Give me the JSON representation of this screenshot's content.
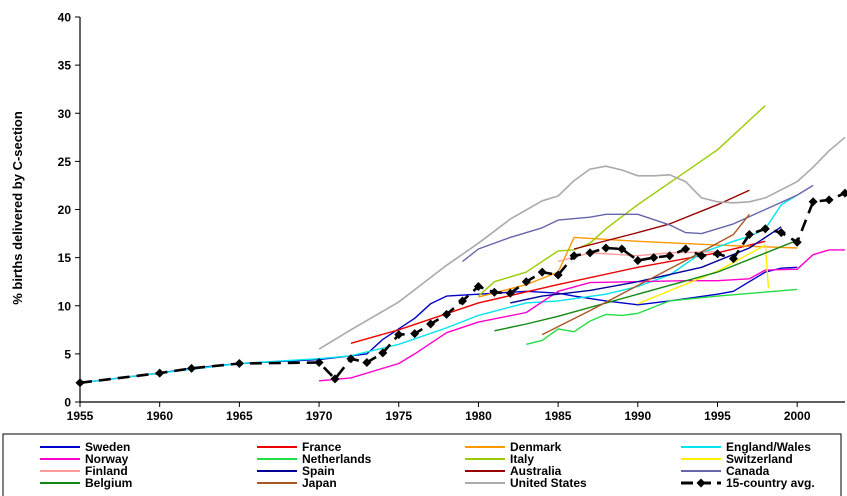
{
  "chart_data": {
    "type": "line",
    "title": "",
    "xlabel": "",
    "ylabel": "% births delivered by C-section",
    "xlim": [
      1955,
      2003
    ],
    "ylim": [
      0,
      40
    ],
    "x_ticks": [
      1955,
      1960,
      1965,
      1970,
      1975,
      1980,
      1985,
      1990,
      1995,
      2000
    ],
    "y_ticks": [
      0,
      5,
      10,
      15,
      20,
      25,
      30,
      35,
      40
    ],
    "grid": false,
    "legend_position": "bottom",
    "series": [
      {
        "name": "Sweden",
        "color": "#0000cc",
        "width": 1.4,
        "dash": "",
        "points": [
          [
            1955,
            2
          ],
          [
            1957,
            2.4
          ],
          [
            1960,
            3
          ],
          [
            1962,
            3.5
          ],
          [
            1965,
            4
          ],
          [
            1970,
            4.4
          ],
          [
            1973,
            5
          ],
          [
            1974,
            6.5
          ],
          [
            1976,
            8.7
          ],
          [
            1977,
            10.2
          ],
          [
            1978,
            11
          ],
          [
            1980,
            11.2
          ],
          [
            1983,
            11.5
          ],
          [
            1985,
            11.3
          ],
          [
            1986,
            11
          ],
          [
            1988,
            10.5
          ],
          [
            1990,
            10.1
          ],
          [
            1992,
            10.5
          ],
          [
            1995,
            11.2
          ],
          [
            1996,
            11.5
          ],
          [
            1998,
            13.5
          ],
          [
            1999,
            13.9
          ],
          [
            2000,
            14
          ]
        ]
      },
      {
        "name": "France",
        "color": "#ee0000",
        "width": 1.4,
        "dash": "",
        "points": [
          [
            1972,
            6.1
          ],
          [
            1975,
            7.5
          ],
          [
            1980,
            10.3
          ],
          [
            1985,
            12.2
          ],
          [
            1990,
            14
          ],
          [
            1995,
            15.5
          ],
          [
            1998,
            16.7
          ]
        ]
      },
      {
        "name": "Denmark",
        "color": "#ff9900",
        "width": 1.4,
        "dash": "",
        "points": [
          [
            1980,
            10.9
          ],
          [
            1983,
            12.2
          ],
          [
            1985,
            13.5
          ],
          [
            1986,
            17.1
          ],
          [
            1990,
            16.7
          ],
          [
            1995,
            16.3
          ],
          [
            2000,
            16
          ]
        ]
      },
      {
        "name": "England/Wales",
        "color": "#00e5ee",
        "width": 1.4,
        "dash": "",
        "points": [
          [
            1955,
            2
          ],
          [
            1960,
            3
          ],
          [
            1965,
            4
          ],
          [
            1970,
            4.5
          ],
          [
            1972,
            4.8
          ],
          [
            1975,
            6
          ],
          [
            1978,
            7.7
          ],
          [
            1980,
            9
          ],
          [
            1983,
            10.3
          ],
          [
            1985,
            10.5
          ],
          [
            1988,
            11.2
          ],
          [
            1990,
            12
          ],
          [
            1992,
            13.2
          ],
          [
            1994,
            15.5
          ],
          [
            1996,
            16.7
          ],
          [
            1997,
            17.2
          ],
          [
            1998,
            18
          ],
          [
            1999,
            20.5
          ],
          [
            2000,
            21.5
          ]
        ]
      },
      {
        "name": "Norway",
        "color": "#ff00cc",
        "width": 1.4,
        "dash": "",
        "points": [
          [
            1970,
            2.2
          ],
          [
            1972,
            2.5
          ],
          [
            1975,
            4
          ],
          [
            1976,
            5
          ],
          [
            1978,
            7.2
          ],
          [
            1980,
            8.3
          ],
          [
            1983,
            9.3
          ],
          [
            1985,
            11.5
          ],
          [
            1987,
            12.4
          ],
          [
            1990,
            12.5
          ],
          [
            1993,
            12.6
          ],
          [
            1995,
            12.6
          ],
          [
            1997,
            12.8
          ],
          [
            1998,
            13.7
          ],
          [
            2000,
            13.8
          ],
          [
            2001,
            15.3
          ],
          [
            2002,
            15.8
          ],
          [
            2003,
            15.8
          ]
        ]
      },
      {
        "name": "Netherlands",
        "color": "#22dd44",
        "width": 1.4,
        "dash": "",
        "points": [
          [
            1983,
            6
          ],
          [
            1984,
            6.4
          ],
          [
            1985,
            7.6
          ],
          [
            1986,
            7.3
          ],
          [
            1987,
            8.4
          ],
          [
            1988,
            9.1
          ],
          [
            1989,
            9
          ],
          [
            1990,
            9.2
          ],
          [
            1992,
            10.5
          ],
          [
            1995,
            11
          ],
          [
            2000,
            11.7
          ]
        ]
      },
      {
        "name": "Italy",
        "color": "#99cc00",
        "width": 1.4,
        "dash": "",
        "points": [
          [
            1980,
            11
          ],
          [
            1981,
            12.5
          ],
          [
            1983,
            13.5
          ],
          [
            1985,
            15.7
          ],
          [
            1986,
            15.8
          ],
          [
            1987,
            16.5
          ],
          [
            1988,
            18
          ],
          [
            1990,
            20.5
          ],
          [
            1995,
            26.2
          ],
          [
            1998,
            30.8
          ]
        ]
      },
      {
        "name": "Switzerland",
        "color": "#ffee00",
        "width": 1.4,
        "dash": "",
        "points": [
          [
            1990,
            10.2
          ],
          [
            1995,
            13.6
          ],
          [
            1998,
            16.3
          ],
          [
            1998.2,
            11.8
          ]
        ]
      },
      {
        "name": "Finland",
        "color": "#ff9999",
        "width": 1.4,
        "dash": "",
        "points": [
          [
            1985,
            14.6
          ],
          [
            1987,
            15.5
          ],
          [
            1990,
            15.2
          ],
          [
            1992,
            15.5
          ],
          [
            1995,
            15.6
          ]
        ]
      },
      {
        "name": "Spain",
        "color": "#000099",
        "width": 1.4,
        "dash": "",
        "points": [
          [
            1982,
            10.3
          ],
          [
            1984,
            11
          ],
          [
            1987,
            11.6
          ],
          [
            1990,
            12.5
          ],
          [
            1994,
            14
          ],
          [
            1997,
            16
          ],
          [
            1999,
            18.2
          ]
        ]
      },
      {
        "name": "Australia",
        "color": "#990000",
        "width": 1.4,
        "dash": "",
        "points": [
          [
            1986,
            15.9
          ],
          [
            1990,
            17.6
          ],
          [
            1992,
            18.5
          ],
          [
            1995,
            20.5
          ],
          [
            1997,
            22
          ]
        ]
      },
      {
        "name": "Canada",
        "color": "#6666aa",
        "width": 1.4,
        "dash": "",
        "points": [
          [
            1979,
            14.6
          ],
          [
            1980,
            15.9
          ],
          [
            1982,
            17.1
          ],
          [
            1984,
            18.1
          ],
          [
            1985,
            18.9
          ],
          [
            1987,
            19.2
          ],
          [
            1988,
            19.5
          ],
          [
            1990,
            19.5
          ],
          [
            1992,
            18.4
          ],
          [
            1993,
            17.6
          ],
          [
            1994,
            17.5
          ],
          [
            1996,
            18.5
          ],
          [
            1998,
            20
          ],
          [
            2000,
            21.5
          ],
          [
            2001,
            22.5
          ]
        ]
      },
      {
        "name": "Belgium",
        "color": "#118811",
        "width": 1.4,
        "dash": "",
        "points": [
          [
            1981,
            7.4
          ],
          [
            1983,
            8.1
          ],
          [
            1985,
            8.9
          ],
          [
            1990,
            11.2
          ],
          [
            1995,
            13.5
          ],
          [
            2000,
            16.8
          ]
        ]
      },
      {
        "name": "Japan",
        "color": "#aa5522",
        "width": 1.4,
        "dash": "",
        "points": [
          [
            1984,
            7
          ],
          [
            1987,
            9.5
          ],
          [
            1990,
            12.1
          ],
          [
            1993,
            14.7
          ],
          [
            1996,
            17.4
          ],
          [
            1997,
            19.5
          ]
        ]
      },
      {
        "name": "United States",
        "color": "#aaaaaa",
        "width": 1.6,
        "dash": "",
        "points": [
          [
            1970,
            5.5
          ],
          [
            1972,
            7.5
          ],
          [
            1975,
            10.4
          ],
          [
            1978,
            14.2
          ],
          [
            1980,
            16.5
          ],
          [
            1982,
            19
          ],
          [
            1984,
            20.9
          ],
          [
            1985,
            21.4
          ],
          [
            1986,
            23
          ],
          [
            1987,
            24.2
          ],
          [
            1988,
            24.5
          ],
          [
            1989,
            24.1
          ],
          [
            1990,
            23.5
          ],
          [
            1991,
            23.5
          ],
          [
            1992,
            23.6
          ],
          [
            1993,
            22.9
          ],
          [
            1994,
            21.2
          ],
          [
            1995,
            20.8
          ],
          [
            1996,
            20.7
          ],
          [
            1997,
            20.8
          ],
          [
            1998,
            21.2
          ],
          [
            2000,
            22.9
          ],
          [
            2001,
            24.4
          ],
          [
            2002,
            26.1
          ],
          [
            2003,
            27.5
          ]
        ]
      },
      {
        "name": "15-country avg.",
        "color": "#000000",
        "width": 2.6,
        "dash": "12,7",
        "markers": true,
        "points": [
          [
            1955,
            2
          ],
          [
            1960,
            3
          ],
          [
            1962,
            3.5
          ],
          [
            1965,
            4
          ],
          [
            1970,
            4.1
          ],
          [
            1971,
            2.4
          ],
          [
            1972,
            4.5
          ],
          [
            1973,
            4.1
          ],
          [
            1974,
            5.1
          ],
          [
            1975,
            7
          ],
          [
            1976,
            7.1
          ],
          [
            1977,
            8.1
          ],
          [
            1978,
            9.1
          ],
          [
            1979,
            10.5
          ],
          [
            1980,
            12
          ],
          [
            1981,
            11.4
          ],
          [
            1982,
            11.3
          ],
          [
            1983,
            12.5
          ],
          [
            1984,
            13.5
          ],
          [
            1985,
            13.2
          ],
          [
            1986,
            15.2
          ],
          [
            1987,
            15.5
          ],
          [
            1988,
            16
          ],
          [
            1989,
            15.9
          ],
          [
            1990,
            14.7
          ],
          [
            1991,
            15
          ],
          [
            1992,
            15.2
          ],
          [
            1993,
            15.9
          ],
          [
            1994,
            15.2
          ],
          [
            1995,
            15.4
          ],
          [
            1996,
            14.9
          ],
          [
            1997,
            17.4
          ],
          [
            1998,
            18
          ],
          [
            1999,
            17.6
          ],
          [
            2000,
            16.6
          ],
          [
            2001,
            20.8
          ],
          [
            2002,
            21
          ],
          [
            2003,
            21.7
          ]
        ]
      }
    ]
  }
}
